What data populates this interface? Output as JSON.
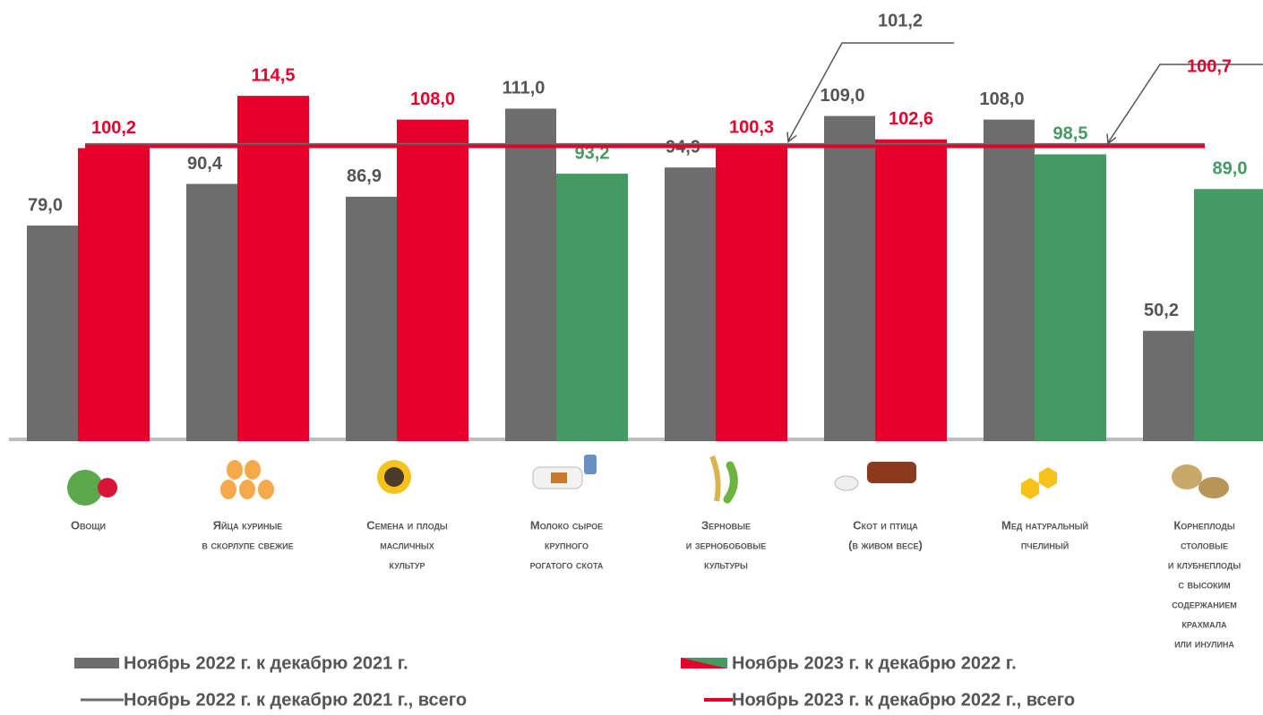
{
  "chart_data": {
    "type": "bar",
    "categories": [
      [
        "Овощи"
      ],
      [
        "Яйца куриные",
        "в скорлупе свежие"
      ],
      [
        "Семена и плоды",
        "масличных",
        "культур"
      ],
      [
        "Молоко сырое",
        "крупного",
        "рогатого скота"
      ],
      [
        "Зерновые",
        "и зернобобовые",
        "культуры"
      ],
      [
        "Скот и птица",
        "(в живом весе)"
      ],
      [
        "Мед натуральный",
        "пчелиный"
      ],
      [
        "Корнеплоды",
        "столовые",
        "и клубнеплоды",
        "с высоким",
        "содержанием",
        "крахмала",
        "или инулина"
      ]
    ],
    "series": [
      {
        "name": "Ноябрь 2022 г. к декабрю 2021 г.",
        "color": "#6d6d6d",
        "values": [
          79.0,
          90.4,
          86.9,
          111.0,
          94.9,
          109.0,
          108.0,
          50.2
        ],
        "value_labels": [
          "79,0",
          "90,4",
          "86,9",
          "111,0",
          "94,9",
          "109,0",
          "108,0",
          "50,2"
        ]
      },
      {
        "name": "Ноябрь 2023 г. к декабрю 2022 г.",
        "colors": [
          "#e4002b",
          "#e4002b",
          "#e4002b",
          "#459a64",
          "#e4002b",
          "#e4002b",
          "#459a64",
          "#459a64"
        ],
        "values": [
          100.2,
          114.5,
          108.0,
          93.2,
          100.3,
          102.6,
          98.5,
          89.0
        ],
        "value_labels": [
          "100,2",
          "114,5",
          "108,0",
          "93,2",
          "100,3",
          "102,6",
          "98,5",
          "89,0"
        ]
      }
    ],
    "reference_lines": [
      {
        "name": "Ноябрь 2022 г. к декабрю 2021 г., всего",
        "color": "#6d6d6d",
        "value": 101.2,
        "value_label": "101,2"
      },
      {
        "name": "Ноябрь 2023 г. к декабрю 2022 г., всего",
        "color": "#e4002b",
        "value": 100.7,
        "value_label": "100,7"
      }
    ],
    "ylim": [
      20,
      140
    ]
  }
}
